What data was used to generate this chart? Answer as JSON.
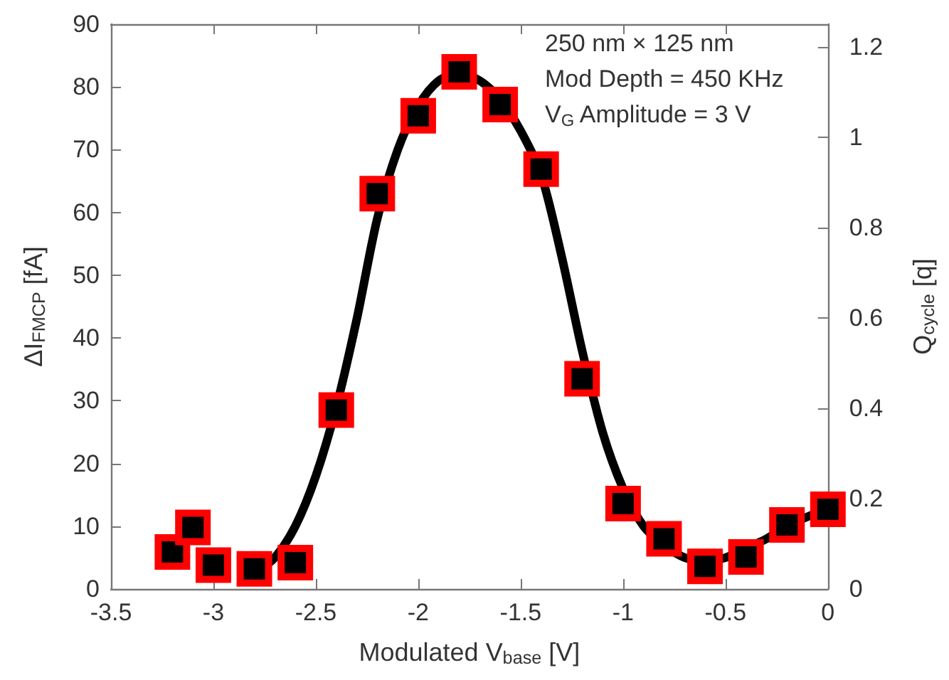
{
  "chart_data": {
    "type": "scatter",
    "xlabel": "Modulated V$_{base}$ [V]",
    "ylabel": "ΔI$_{FMCP}$ [fA]",
    "y2label": "Q$_{cycle}$ [q]",
    "xlim": [
      -3.5,
      0
    ],
    "xticks": [
      -3.5,
      -3,
      -2.5,
      -2,
      -1.5,
      -1,
      -0.5,
      0
    ],
    "ylim": [
      0,
      90
    ],
    "yticks": [
      0,
      10,
      20,
      30,
      40,
      50,
      60,
      70,
      80,
      90
    ],
    "y2lim": [
      0,
      1.25
    ],
    "y2ticks": [
      0,
      0.2,
      0.4,
      0.6,
      0.8,
      1,
      1.2
    ],
    "grid": false,
    "annotations": [
      "250 nm × 125 nm",
      "Mod Depth = 450 KHz",
      "V$_{G}$ Amplitude = 3 V"
    ],
    "series": [
      {
        "type": "line",
        "color": "#000000",
        "marker": "none",
        "line_style": "solid",
        "x": [
          -2.78,
          -2.7,
          -2.6,
          -2.5,
          -2.4,
          -2.3,
          -2.2,
          -2.1,
          -2.0,
          -1.9,
          -1.8,
          -1.7,
          -1.6,
          -1.5,
          -1.4,
          -1.3,
          -1.2,
          -1.1,
          -1.0,
          -0.9,
          -0.8,
          -0.7,
          -0.6,
          -0.5,
          -0.4,
          -0.3,
          -0.2,
          -0.1,
          0
        ],
        "values": [
          3,
          5,
          10,
          18,
          29,
          43,
          59,
          70,
          77,
          81,
          82,
          81,
          78,
          73,
          66,
          53,
          38,
          25,
          16,
          10,
          7,
          5,
          4.5,
          5,
          6.5,
          8,
          10,
          11.5,
          12.7
        ]
      },
      {
        "color": "#ff0000",
        "marker": "square",
        "x": [
          -3.2,
          -3.1,
          -3.0,
          -2.8,
          -2.6,
          -2.4,
          -2.2,
          -2.0,
          -1.8,
          -1.6,
          -1.4,
          -1.2,
          -1.0,
          -0.8,
          -0.6,
          -0.4,
          -0.2,
          0
        ],
        "values": [
          5.9,
          9.8,
          3.8,
          3.2,
          4.2,
          28.5,
          63,
          75.4,
          82.4,
          77.2,
          66.9,
          33.5,
          13.6,
          8.0,
          3.6,
          5.1,
          10.2,
          12.7
        ]
      }
    ]
  }
}
